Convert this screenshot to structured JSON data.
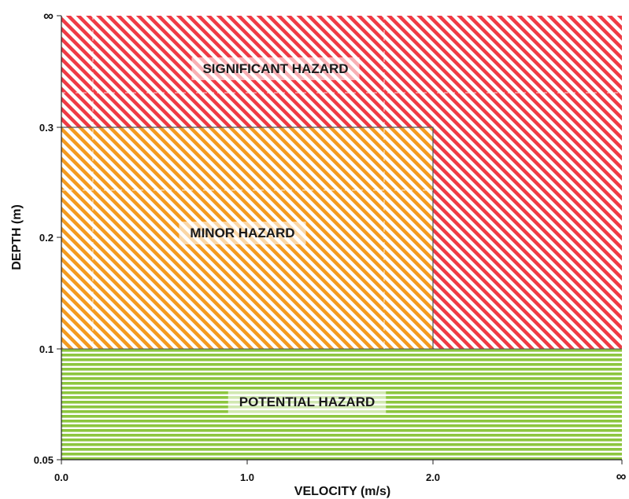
{
  "chart_data": {
    "type": "area",
    "title": "",
    "xlabel": "VELOCITY (m/s)",
    "ylabel": "DEPTH (m)",
    "x_ticks": [
      "0.0",
      "1.0",
      "2.0",
      "∞"
    ],
    "y_ticks": [
      "0.05",
      "0.1",
      "0.2",
      "0.3",
      "∞"
    ],
    "xlim": [
      0,
      "∞"
    ],
    "ylim": [
      0.05,
      "∞"
    ],
    "grid": false,
    "zones": [
      {
        "name": "SIGNIFICANT HAZARD",
        "color": "#ee3b45",
        "pattern": "diagonal",
        "region": "depth > 0.3 for any velocity, or depth > 0.1 and velocity > 2.0"
      },
      {
        "name": "MINOR HAZARD",
        "color": "#f39a1f",
        "pattern": "diagonal",
        "velocity_range": [
          0.0,
          2.0
        ],
        "depth_range": [
          0.1,
          0.3
        ]
      },
      {
        "name": "POTENTIAL HAZARD",
        "color": "#8dc63f",
        "pattern": "horizontal",
        "velocity_range": [
          0.0,
          "∞"
        ],
        "depth_range": [
          0.05,
          0.1
        ]
      }
    ]
  }
}
